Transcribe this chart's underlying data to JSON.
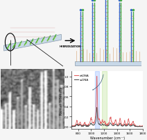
{
  "fig_bg": "#f0f0f0",
  "raman_xlim": [
    700,
    1800
  ],
  "raman_ylim": [
    0,
    1.0
  ],
  "ssdna_color": "#555555",
  "dsdna_color": "#e06060",
  "highlight_blue": [
    1060,
    1120
  ],
  "highlight_green": [
    1170,
    1240
  ],
  "xlabel": "Wavenumber (cm⁻¹)",
  "ylabel": "Raman Intensity",
  "legend_labels": [
    "ssDNA",
    "dsDNA"
  ],
  "title": ""
}
